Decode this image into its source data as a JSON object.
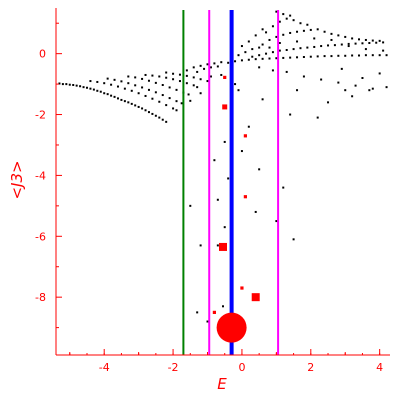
{
  "chart_data": {
    "type": "scatter",
    "xlabel": "E",
    "ylabel": "<J3>",
    "xlim": [
      -5.4,
      4.3
    ],
    "ylim": [
      -9.9,
      1.5
    ],
    "grid": false,
    "x_ticks": [
      -4,
      -2,
      0,
      2,
      4
    ],
    "x_tick_labels": [
      "-4",
      "-2",
      "0",
      "2",
      "4"
    ],
    "y_ticks": [
      0,
      -2,
      -4,
      -6,
      -8
    ],
    "y_tick_labels": [
      "0",
      "-2",
      "-4",
      "-6",
      "-8"
    ],
    "colors": {
      "axis": "#ff0000",
      "points": "#000000",
      "highlight": "#ff0000",
      "line_green": "#008000",
      "line_magenta": "#ff00ff",
      "line_blue": "#0000ff"
    },
    "vertical_lines": [
      {
        "x": -1.7,
        "color": "#008000"
      },
      {
        "x": -0.95,
        "color": "#ff00ff"
      },
      {
        "x": -0.3,
        "color": "#0000ff"
      },
      {
        "x": 1.05,
        "color": "#ff00ff"
      }
    ],
    "series": [
      {
        "color": "#000000",
        "points": [
          [
            -5.3,
            -0.98
          ],
          [
            -5.2,
            -1.0
          ],
          [
            -5.1,
            -1.0
          ],
          [
            -5.0,
            -1.02
          ],
          [
            -4.9,
            -1.03
          ],
          [
            -4.8,
            -1.05
          ],
          [
            -4.7,
            -1.07
          ],
          [
            -4.6,
            -1.1
          ],
          [
            -4.5,
            -1.12
          ],
          [
            -4.4,
            -1.15
          ],
          [
            -4.3,
            -1.18
          ],
          [
            -4.2,
            -1.22
          ],
          [
            -4.1,
            -1.25
          ],
          [
            -4.0,
            -1.3
          ],
          [
            -3.9,
            -1.33
          ],
          [
            -3.8,
            -1.38
          ],
          [
            -3.7,
            -1.42
          ],
          [
            -3.6,
            -1.47
          ],
          [
            -3.5,
            -1.52
          ],
          [
            -3.4,
            -1.56
          ],
          [
            -3.3,
            -1.6
          ],
          [
            -3.2,
            -1.65
          ],
          [
            -3.1,
            -1.7
          ],
          [
            -3.0,
            -1.75
          ],
          [
            -2.9,
            -1.8
          ],
          [
            -2.8,
            -1.86
          ],
          [
            -2.7,
            -1.92
          ],
          [
            -2.6,
            -1.98
          ],
          [
            -2.5,
            -2.04
          ],
          [
            -2.4,
            -2.1
          ],
          [
            -2.3,
            -2.17
          ],
          [
            -2.2,
            -2.24
          ],
          [
            -4.4,
            -0.9
          ],
          [
            -4.2,
            -0.93
          ],
          [
            -4.0,
            -0.97
          ],
          [
            -3.8,
            -1.02
          ],
          [
            -3.6,
            -1.08
          ],
          [
            -3.4,
            -1.15
          ],
          [
            -3.2,
            -1.22
          ],
          [
            -3.0,
            -1.3
          ],
          [
            -2.8,
            -1.39
          ],
          [
            -2.6,
            -1.48
          ],
          [
            -2.4,
            -1.58
          ],
          [
            -2.2,
            -1.69
          ],
          [
            -2.0,
            -1.8
          ],
          [
            -1.9,
            -1.86
          ],
          [
            -3.9,
            -0.82
          ],
          [
            -3.7,
            -0.86
          ],
          [
            -3.5,
            -0.91
          ],
          [
            -3.3,
            -0.97
          ],
          [
            -3.1,
            -1.04
          ],
          [
            -2.9,
            -1.11
          ],
          [
            -2.7,
            -1.19
          ],
          [
            -2.5,
            -1.27
          ],
          [
            -2.3,
            -1.36
          ],
          [
            -2.1,
            -1.46
          ],
          [
            -1.9,
            -1.56
          ],
          [
            -1.75,
            -1.63
          ],
          [
            -3.3,
            -0.75
          ],
          [
            -3.1,
            -0.78
          ],
          [
            -2.9,
            -0.83
          ],
          [
            -2.7,
            -0.89
          ],
          [
            -2.5,
            -0.96
          ],
          [
            -2.3,
            -1.03
          ],
          [
            -2.1,
            -1.11
          ],
          [
            -1.9,
            -1.19
          ],
          [
            -1.7,
            -1.28
          ],
          [
            -1.55,
            -1.34
          ],
          [
            -2.8,
            -0.7
          ],
          [
            -2.6,
            -0.72
          ],
          [
            -2.4,
            -0.75
          ],
          [
            -2.2,
            -0.79
          ],
          [
            -2.0,
            -0.84
          ],
          [
            -1.8,
            -0.9
          ],
          [
            -1.6,
            -0.97
          ],
          [
            -1.4,
            -1.04
          ],
          [
            -1.3,
            -1.1
          ],
          [
            -2.2,
            -0.62
          ],
          [
            -2.0,
            -0.66
          ],
          [
            -1.8,
            -0.69
          ],
          [
            -1.6,
            -0.73
          ],
          [
            -1.4,
            -0.78
          ],
          [
            -1.2,
            -0.84
          ],
          [
            -1.0,
            -0.9
          ],
          [
            -1.6,
            -0.55
          ],
          [
            -1.4,
            -0.45
          ],
          [
            -1.2,
            -0.4
          ],
          [
            -1.0,
            -0.35
          ],
          [
            -0.8,
            -0.32
          ],
          [
            -0.6,
            -0.28
          ],
          [
            -1.1,
            -0.5
          ],
          [
            -0.9,
            -0.45
          ],
          [
            -1.3,
            -0.6
          ],
          [
            -0.7,
            -0.42
          ],
          [
            -0.4,
            -0.3
          ],
          [
            -0.2,
            -0.25
          ],
          [
            0.0,
            -0.22
          ],
          [
            0.2,
            -0.2
          ],
          [
            0.4,
            -0.18
          ],
          [
            0.6,
            -0.17
          ],
          [
            0.8,
            -0.16
          ],
          [
            1.0,
            -0.15
          ],
          [
            1.2,
            -0.14
          ],
          [
            1.4,
            -0.13
          ],
          [
            1.6,
            -0.12
          ],
          [
            1.8,
            -0.11
          ],
          [
            2.0,
            -0.1
          ],
          [
            2.2,
            -0.09
          ],
          [
            2.4,
            -0.08
          ],
          [
            2.6,
            -0.08
          ],
          [
            2.8,
            -0.07
          ],
          [
            3.0,
            -0.07
          ],
          [
            3.2,
            -0.06
          ],
          [
            3.4,
            -0.06
          ],
          [
            3.6,
            -0.05
          ],
          [
            3.8,
            -0.05
          ],
          [
            4.0,
            -0.05
          ],
          [
            4.2,
            -0.05
          ],
          [
            0.3,
            -0.1
          ],
          [
            0.5,
            -0.05
          ],
          [
            0.7,
            0.0
          ],
          [
            0.9,
            0.05
          ],
          [
            1.1,
            0.1
          ],
          [
            1.3,
            0.12
          ],
          [
            1.5,
            0.15
          ],
          [
            1.7,
            0.18
          ],
          [
            1.9,
            0.2
          ],
          [
            2.1,
            0.22
          ],
          [
            2.3,
            0.25
          ],
          [
            2.5,
            0.27
          ],
          [
            2.7,
            0.28
          ],
          [
            2.9,
            0.3
          ],
          [
            3.1,
            0.32
          ],
          [
            3.3,
            0.33
          ],
          [
            3.5,
            0.34
          ],
          [
            3.7,
            0.35
          ],
          [
            3.9,
            0.36
          ],
          [
            4.1,
            0.37
          ],
          [
            0.6,
            0.3
          ],
          [
            0.8,
            0.45
          ],
          [
            1.0,
            0.55
          ],
          [
            1.2,
            0.62
          ],
          [
            1.4,
            0.68
          ],
          [
            1.6,
            0.72
          ],
          [
            1.8,
            0.75
          ],
          [
            2.0,
            0.78
          ],
          [
            2.2,
            0.8
          ],
          [
            2.4,
            0.72
          ],
          [
            2.6,
            0.65
          ],
          [
            2.8,
            0.6
          ],
          [
            3.0,
            0.55
          ],
          [
            3.2,
            0.5
          ],
          [
            3.4,
            0.47
          ],
          [
            3.6,
            0.45
          ],
          [
            3.8,
            0.43
          ],
          [
            4.0,
            0.42
          ],
          [
            0.9,
            0.9
          ],
          [
            1.1,
            1.05
          ],
          [
            1.3,
            1.15
          ],
          [
            1.5,
            1.1
          ],
          [
            1.7,
            1.0
          ],
          [
            1.9,
            0.95
          ],
          [
            0.7,
            0.7
          ],
          [
            1.2,
            1.3
          ],
          [
            1.0,
            1.38
          ],
          [
            1.4,
            1.25
          ],
          [
            0.0,
            0.25
          ],
          [
            0.2,
            0.4
          ],
          [
            0.4,
            0.6
          ],
          [
            0.6,
            0.8
          ],
          [
            0.1,
            0.05
          ],
          [
            -0.1,
            -0.05
          ],
          [
            0.3,
            0.15
          ],
          [
            0.5,
            0.2
          ],
          [
            0.8,
            0.2
          ],
          [
            1.1,
            0.35
          ],
          [
            1.6,
            0.4
          ],
          [
            2.1,
            0.5
          ],
          [
            2.6,
            0.45
          ],
          [
            3.1,
            0.25
          ],
          [
            3.6,
            0.15
          ],
          [
            4.1,
            0.1
          ],
          [
            0.5,
            -0.45
          ],
          [
            0.9,
            -0.55
          ],
          [
            1.3,
            -0.6
          ],
          [
            1.8,
            -0.75
          ],
          [
            2.3,
            -0.85
          ],
          [
            2.8,
            -0.95
          ],
          [
            3.3,
            -1.05
          ],
          [
            3.8,
            -1.15
          ],
          [
            1.6,
            -1.2
          ],
          [
            2.5,
            -1.6
          ],
          [
            3.0,
            -1.2
          ],
          [
            2.2,
            -2.1
          ],
          [
            1.4,
            -2.0
          ],
          [
            0.6,
            -1.5
          ],
          [
            -0.1,
            -1.2
          ],
          [
            0.2,
            -2.4
          ],
          [
            -0.5,
            -2.9
          ],
          [
            0.0,
            -3.2
          ],
          [
            -0.8,
            -3.5
          ],
          [
            -0.4,
            -4.1
          ],
          [
            0.5,
            -3.8
          ],
          [
            1.2,
            -4.4
          ],
          [
            -0.7,
            -4.8
          ],
          [
            0.4,
            -5.2
          ],
          [
            1.0,
            -5.5
          ],
          [
            1.5,
            -6.1
          ],
          [
            -0.5,
            -5.7
          ],
          [
            -1.2,
            -6.3
          ],
          [
            -0.7,
            -6.3
          ],
          [
            -0.5,
            -6.3
          ],
          [
            -1.3,
            -8.5
          ],
          [
            -1.0,
            -8.8
          ],
          [
            -0.55,
            -8.3
          ],
          [
            -1.5,
            -5.0
          ],
          [
            3.2,
            -1.4
          ],
          [
            3.7,
            -1.2
          ],
          [
            4.2,
            -1.1
          ],
          [
            2.9,
            -0.5
          ],
          [
            3.5,
            -0.8
          ],
          [
            4.0,
            -0.65
          ],
          [
            -0.9,
            -0.75
          ],
          [
            -0.6,
            -0.7
          ],
          [
            -0.3,
            -0.65
          ],
          [
            -1.5,
            -1.55
          ],
          [
            -1.2,
            -1.3
          ],
          [
            -0.2,
            -1.0
          ]
        ]
      },
      {
        "color": "#ff0000",
        "markers": [
          {
            "x": -0.3,
            "y": -9.0,
            "size": "large"
          },
          {
            "x": 0.4,
            "y": -8.0,
            "size": "medium"
          },
          {
            "x": -0.55,
            "y": -6.35,
            "size": "medium"
          },
          {
            "x": -0.5,
            "y": -1.75,
            "size": "small"
          },
          {
            "x": 0.1,
            "y": -2.7,
            "size": "tiny"
          },
          {
            "x": 0.1,
            "y": -4.7,
            "size": "tiny"
          },
          {
            "x": 0.0,
            "y": -7.7,
            "size": "tiny"
          },
          {
            "x": -0.5,
            "y": -0.78,
            "size": "tiny"
          },
          {
            "x": -0.8,
            "y": -8.5,
            "size": "tiny"
          }
        ]
      }
    ]
  }
}
